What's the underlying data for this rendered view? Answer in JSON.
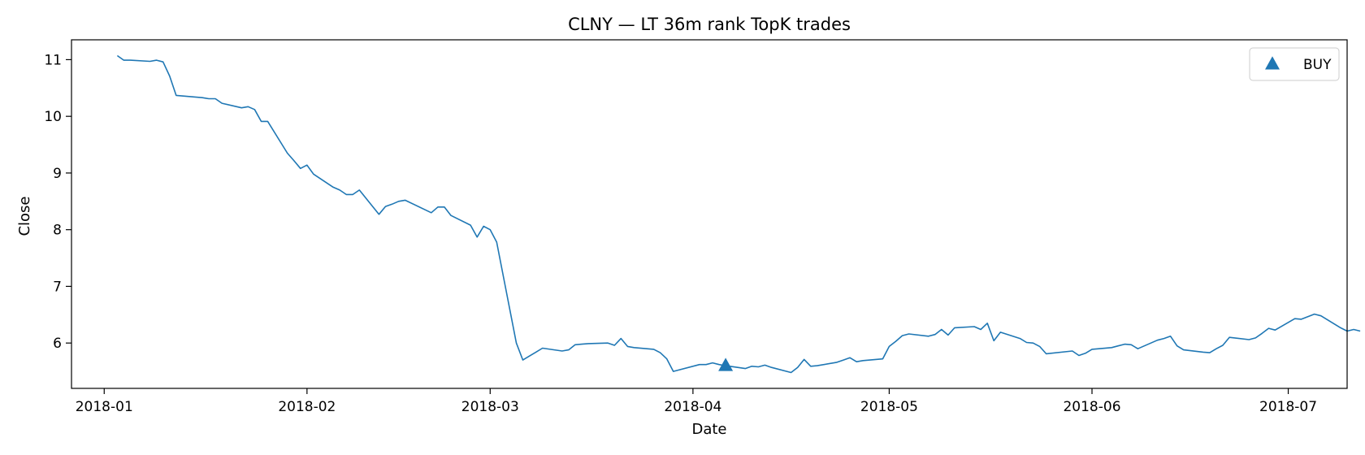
{
  "chart_data": {
    "type": "line",
    "title": "CLNY — LT 36m rank TopK trades",
    "xlabel": "Date",
    "ylabel": "Close",
    "x_ticks": [
      "2018-01",
      "2018-02",
      "2018-03",
      "2018-04",
      "2018-05",
      "2018-06",
      "2018-07"
    ],
    "y_ticks": [
      6,
      7,
      8,
      9,
      10,
      11
    ],
    "xlim": [
      "2017-12-27",
      "2018-07-10"
    ],
    "ylim": [
      5.2,
      11.35
    ],
    "grid": false,
    "legend_position": "top-right",
    "series": [
      {
        "color": "#1f77b4",
        "points": [
          [
            "2018-01-03",
            11.07
          ],
          [
            "2018-01-04",
            10.99
          ],
          [
            "2018-01-05",
            10.99
          ],
          [
            "2018-01-08",
            10.97
          ],
          [
            "2018-01-09",
            10.99
          ],
          [
            "2018-01-10",
            10.96
          ],
          [
            "2018-01-11",
            10.71
          ],
          [
            "2018-01-12",
            10.37
          ],
          [
            "2018-01-16",
            10.33
          ],
          [
            "2018-01-17",
            10.31
          ],
          [
            "2018-01-18",
            10.31
          ],
          [
            "2018-01-19",
            10.23
          ],
          [
            "2018-01-22",
            10.15
          ],
          [
            "2018-01-23",
            10.17
          ],
          [
            "2018-01-24",
            10.12
          ],
          [
            "2018-01-25",
            9.91
          ],
          [
            "2018-01-26",
            9.91
          ],
          [
            "2018-01-29",
            9.35
          ],
          [
            "2018-01-30",
            9.22
          ],
          [
            "2018-01-31",
            9.08
          ],
          [
            "2018-02-01",
            9.14
          ],
          [
            "2018-02-02",
            8.98
          ],
          [
            "2018-02-05",
            8.75
          ],
          [
            "2018-02-06",
            8.7
          ],
          [
            "2018-02-07",
            8.62
          ],
          [
            "2018-02-08",
            8.62
          ],
          [
            "2018-02-09",
            8.7
          ],
          [
            "2018-02-12",
            8.27
          ],
          [
            "2018-02-13",
            8.41
          ],
          [
            "2018-02-14",
            8.45
          ],
          [
            "2018-02-15",
            8.5
          ],
          [
            "2018-02-16",
            8.52
          ],
          [
            "2018-02-20",
            8.3
          ],
          [
            "2018-02-21",
            8.4
          ],
          [
            "2018-02-22",
            8.4
          ],
          [
            "2018-02-23",
            8.25
          ],
          [
            "2018-02-26",
            8.08
          ],
          [
            "2018-02-27",
            7.87
          ],
          [
            "2018-02-28",
            8.06
          ],
          [
            "2018-03-01",
            8.0
          ],
          [
            "2018-03-02",
            7.78
          ],
          [
            "2018-03-05",
            6.0
          ],
          [
            "2018-03-06",
            5.7
          ],
          [
            "2018-03-07",
            5.77
          ],
          [
            "2018-03-08",
            5.84
          ],
          [
            "2018-03-09",
            5.91
          ],
          [
            "2018-03-12",
            5.86
          ],
          [
            "2018-03-13",
            5.88
          ],
          [
            "2018-03-14",
            5.97
          ],
          [
            "2018-03-15",
            5.98
          ],
          [
            "2018-03-16",
            5.99
          ],
          [
            "2018-03-19",
            6.0
          ],
          [
            "2018-03-20",
            5.96
          ],
          [
            "2018-03-21",
            6.08
          ],
          [
            "2018-03-22",
            5.94
          ],
          [
            "2018-03-23",
            5.92
          ],
          [
            "2018-03-26",
            5.89
          ],
          [
            "2018-03-27",
            5.83
          ],
          [
            "2018-03-28",
            5.72
          ],
          [
            "2018-03-29",
            5.5
          ],
          [
            "2018-04-02",
            5.62
          ],
          [
            "2018-04-03",
            5.62
          ],
          [
            "2018-04-04",
            5.65
          ],
          [
            "2018-04-05",
            5.62
          ],
          [
            "2018-04-06",
            5.6
          ],
          [
            "2018-04-09",
            5.55
          ],
          [
            "2018-04-10",
            5.59
          ],
          [
            "2018-04-11",
            5.58
          ],
          [
            "2018-04-12",
            5.61
          ],
          [
            "2018-04-13",
            5.57
          ],
          [
            "2018-04-16",
            5.48
          ],
          [
            "2018-04-17",
            5.57
          ],
          [
            "2018-04-18",
            5.71
          ],
          [
            "2018-04-19",
            5.59
          ],
          [
            "2018-04-20",
            5.6
          ],
          [
            "2018-04-23",
            5.66
          ],
          [
            "2018-04-24",
            5.7
          ],
          [
            "2018-04-25",
            5.74
          ],
          [
            "2018-04-26",
            5.67
          ],
          [
            "2018-04-27",
            5.69
          ],
          [
            "2018-04-30",
            5.72
          ],
          [
            "2018-05-01",
            5.94
          ],
          [
            "2018-05-02",
            6.03
          ],
          [
            "2018-05-03",
            6.13
          ],
          [
            "2018-05-04",
            6.16
          ],
          [
            "2018-05-07",
            6.12
          ],
          [
            "2018-05-08",
            6.15
          ],
          [
            "2018-05-09",
            6.24
          ],
          [
            "2018-05-10",
            6.14
          ],
          [
            "2018-05-11",
            6.27
          ],
          [
            "2018-05-14",
            6.29
          ],
          [
            "2018-05-15",
            6.24
          ],
          [
            "2018-05-16",
            6.35
          ],
          [
            "2018-05-17",
            6.04
          ],
          [
            "2018-05-18",
            6.19
          ],
          [
            "2018-05-21",
            6.08
          ],
          [
            "2018-05-22",
            6.01
          ],
          [
            "2018-05-23",
            6.0
          ],
          [
            "2018-05-24",
            5.94
          ],
          [
            "2018-05-25",
            5.81
          ],
          [
            "2018-05-29",
            5.86
          ],
          [
            "2018-05-30",
            5.78
          ],
          [
            "2018-05-31",
            5.82
          ],
          [
            "2018-06-01",
            5.89
          ],
          [
            "2018-06-04",
            5.92
          ],
          [
            "2018-06-05",
            5.95
          ],
          [
            "2018-06-06",
            5.98
          ],
          [
            "2018-06-07",
            5.97
          ],
          [
            "2018-06-08",
            5.9
          ],
          [
            "2018-06-11",
            6.05
          ],
          [
            "2018-06-12",
            6.08
          ],
          [
            "2018-06-13",
            6.12
          ],
          [
            "2018-06-14",
            5.95
          ],
          [
            "2018-06-15",
            5.88
          ],
          [
            "2018-06-18",
            5.84
          ],
          [
            "2018-06-19",
            5.83
          ],
          [
            "2018-06-20",
            5.9
          ],
          [
            "2018-06-21",
            5.96
          ],
          [
            "2018-06-22",
            6.1
          ],
          [
            "2018-06-25",
            6.06
          ],
          [
            "2018-06-26",
            6.09
          ],
          [
            "2018-06-27",
            6.17
          ],
          [
            "2018-06-28",
            6.26
          ],
          [
            "2018-06-29",
            6.23
          ],
          [
            "2018-07-02",
            6.43
          ],
          [
            "2018-07-03",
            6.42
          ],
          [
            "2018-07-05",
            6.51
          ],
          [
            "2018-07-06",
            6.48
          ],
          [
            "2018-07-09",
            6.27
          ],
          [
            "2018-07-10",
            6.21
          ],
          [
            "2018-07-11",
            6.24
          ],
          [
            "2018-07-12",
            6.21
          ]
        ]
      }
    ],
    "markers": [
      {
        "label": "BUY",
        "symbol": "triangle-up",
        "color": "#1f77b4",
        "x": "2018-04-06",
        "y": 5.6
      }
    ]
  }
}
